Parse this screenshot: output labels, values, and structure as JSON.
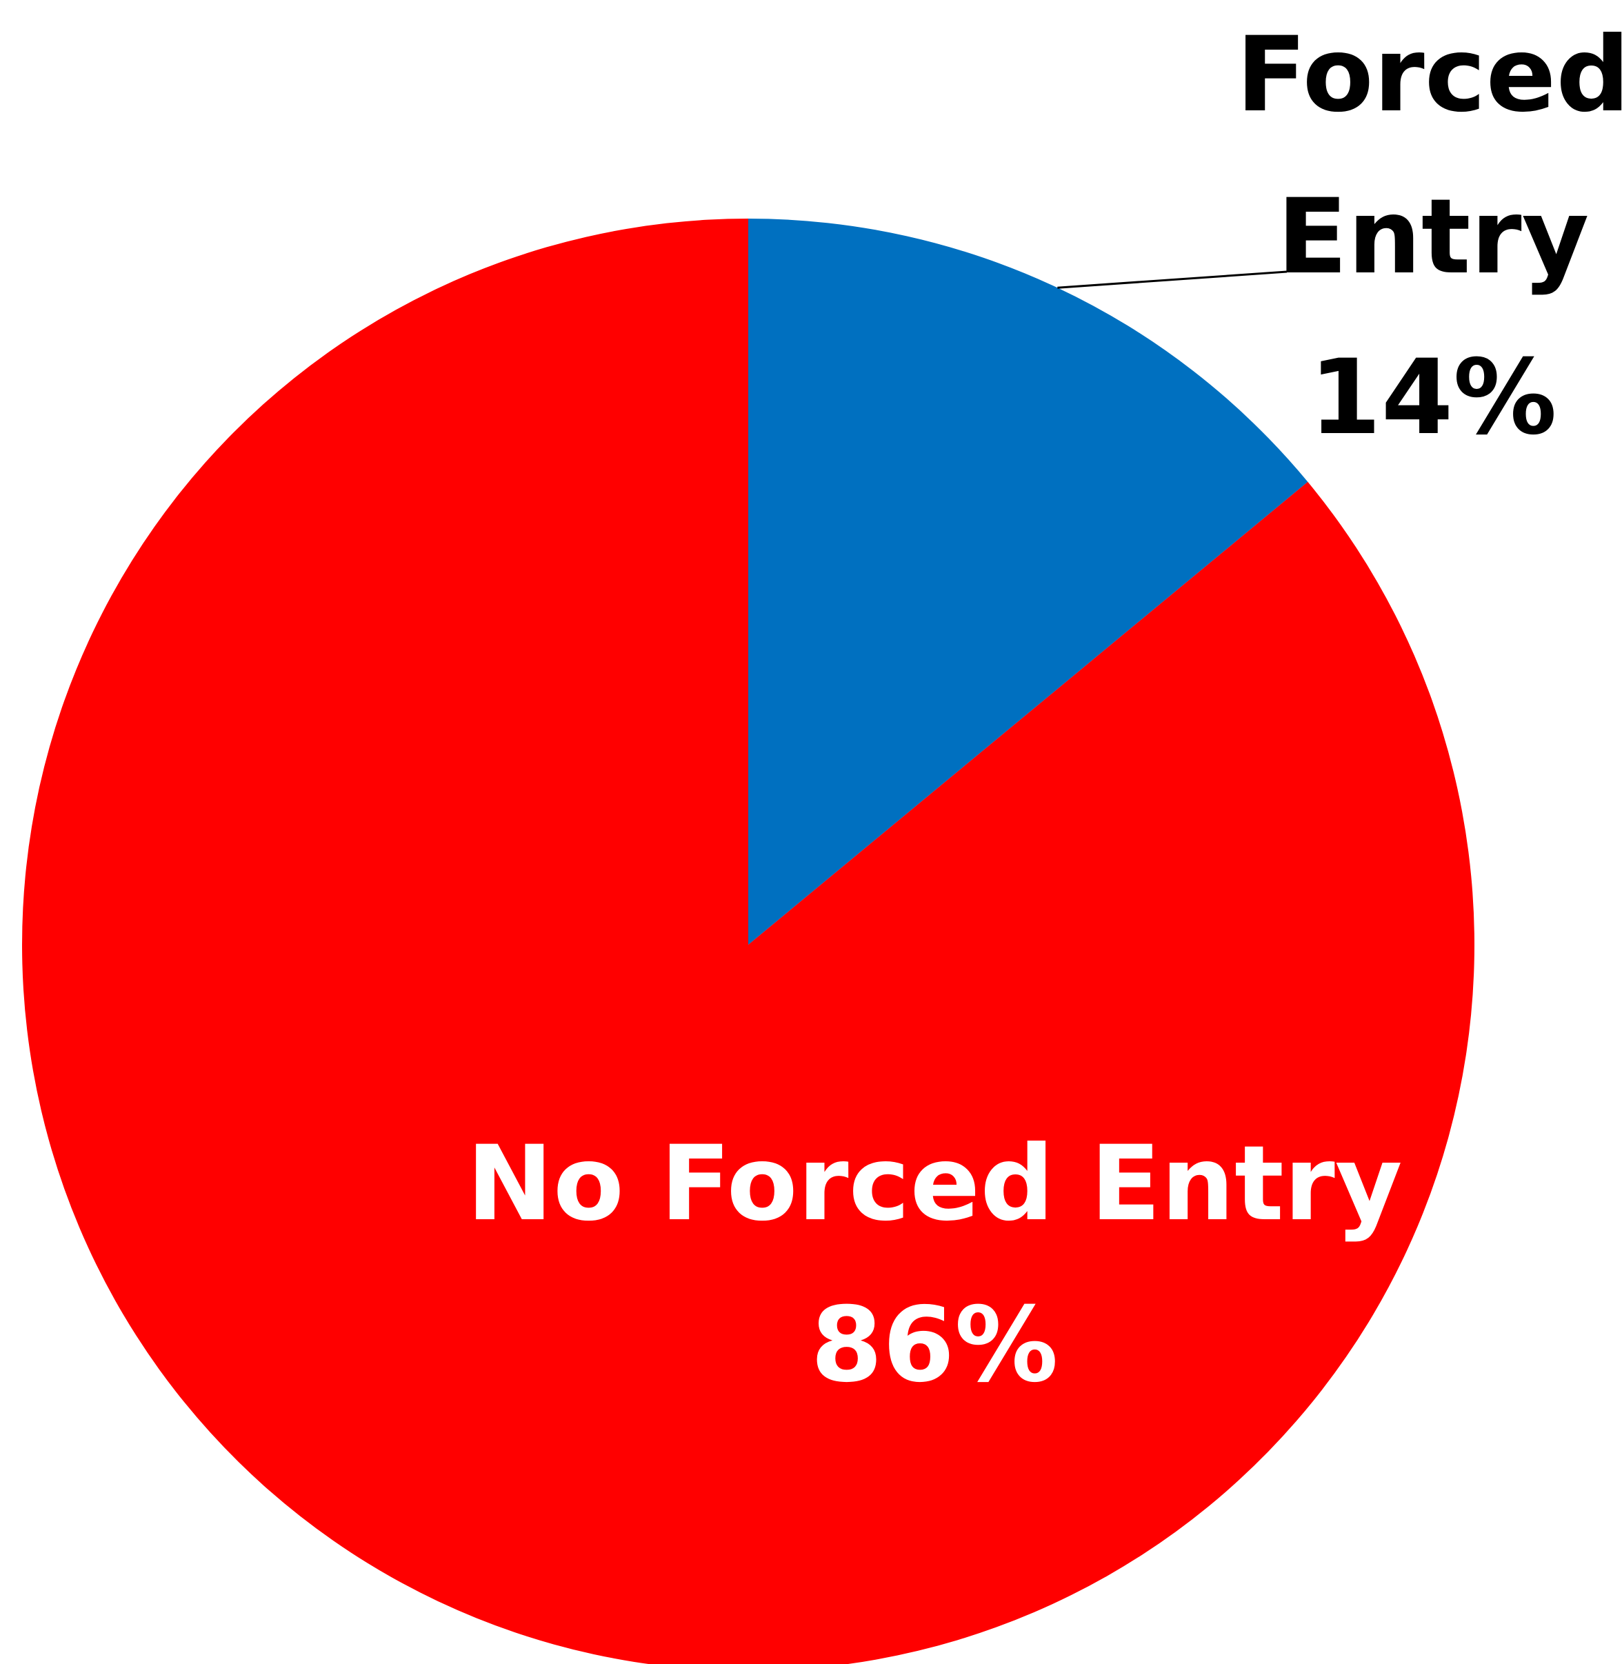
{
  "chart_data": {
    "type": "pie",
    "title": "",
    "slices": [
      {
        "name": "Forced Entry",
        "label_lines": [
          "Forced",
          "Entry"
        ],
        "value_label": "14%",
        "value": 14,
        "color": "#0070c0",
        "label_color": "#000000"
      },
      {
        "name": "No Forced Entry",
        "label_lines": [
          "No Forced Entry"
        ],
        "value_label": "86%",
        "value": 86,
        "color": "#ff0000",
        "label_color": "#ffffff"
      }
    ],
    "start_angle": "12 o'clock",
    "direction": "clockwise",
    "legend": "none",
    "leader_line": true
  }
}
